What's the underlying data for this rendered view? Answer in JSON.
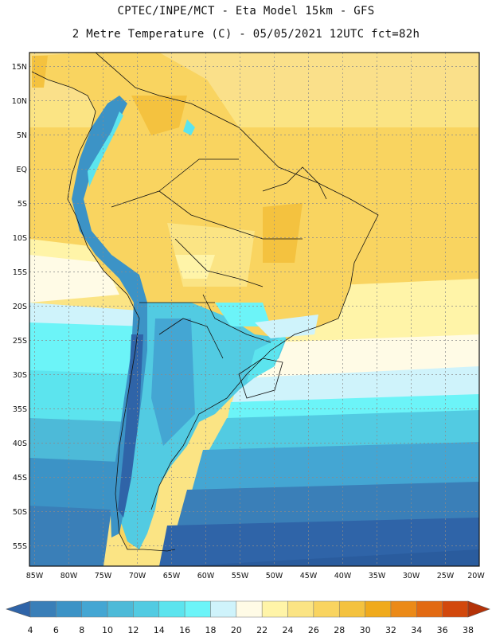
{
  "header": {
    "line1": "CPTEC/INPE/MCT -  Eta Model 15km - GFS",
    "line2": "2 Metre Temperature (C) - 05/05/2021 12UTC fct=82h"
  },
  "map": {
    "lat_labels": [
      "15N",
      "10N",
      "5N",
      "EQ",
      "5S",
      "10S",
      "15S",
      "20S",
      "25S",
      "30S",
      "35S",
      "40S",
      "45S",
      "50S",
      "55S"
    ],
    "lon_labels": [
      "85W",
      "80W",
      "75W",
      "70W",
      "65W",
      "60W",
      "55W",
      "50W",
      "45W",
      "40W",
      "35W",
      "30W",
      "25W",
      "20W"
    ]
  },
  "colorbar": {
    "labels": [
      "4",
      "6",
      "8",
      "10",
      "12",
      "14",
      "16",
      "18",
      "20",
      "22",
      "24",
      "26",
      "28",
      "30",
      "32",
      "34",
      "36",
      "38"
    ],
    "colors": [
      "#2f64a8",
      "#3a7fb8",
      "#3c93c6",
      "#44a6d3",
      "#4dbad8",
      "#52cbe2",
      "#5ce4ee",
      "#6cf4f8",
      "#cff3fb",
      "#fffbe6",
      "#fff4a8",
      "#fbe484",
      "#f9d460",
      "#f4c23f",
      "#f0aa1c",
      "#eb8a18",
      "#e26a12",
      "#d2480c",
      "#b43208"
    ]
  }
}
